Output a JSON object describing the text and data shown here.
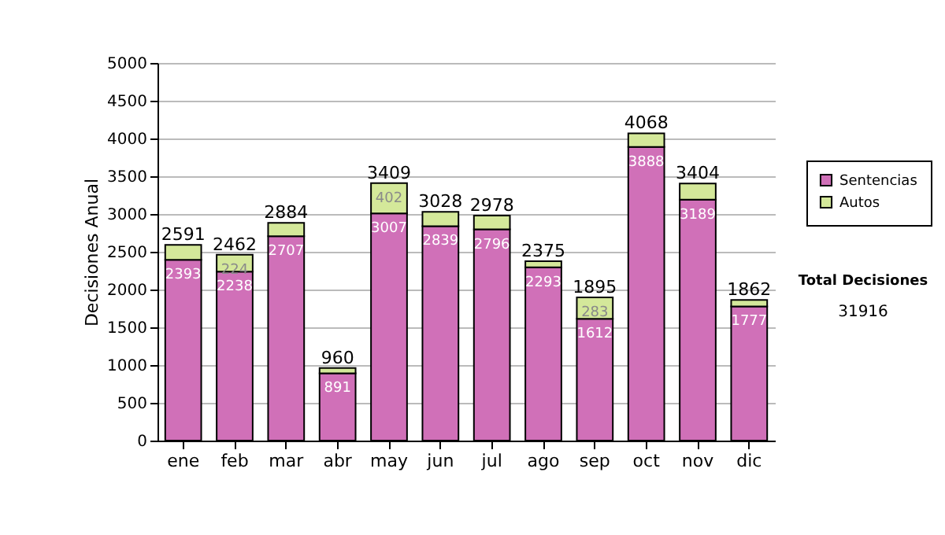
{
  "chart_data": {
    "type": "bar",
    "stacked": true,
    "ylabel": "Decisiones Anual",
    "categories": [
      "ene",
      "feb",
      "mar",
      "abr",
      "may",
      "jun",
      "jul",
      "ago",
      "sep",
      "oct",
      "nov",
      "dic"
    ],
    "series": [
      {
        "name": "Sentencias",
        "color": "#d070b8",
        "values": [
          2393,
          2238,
          2707,
          891,
          3007,
          2839,
          2796,
          2293,
          1612,
          3888,
          3189,
          1777
        ],
        "value_labels": [
          "2393",
          "2238",
          "2707",
          "891",
          "3007",
          "2839",
          "2796",
          "2293",
          "1612",
          "3888",
          "3189",
          "1777"
        ]
      },
      {
        "name": "Autos",
        "color": "#d4e89a",
        "values": [
          198,
          224,
          177,
          69,
          402,
          189,
          182,
          82,
          283,
          180,
          215,
          85
        ],
        "value_labels": [
          null,
          "224",
          null,
          null,
          "402",
          null,
          null,
          null,
          "283",
          null,
          null,
          null
        ]
      }
    ],
    "totals": [
      "2591",
      "2462",
      "2884",
      "960",
      "3409",
      "3028",
      "2978",
      "2375",
      "1895",
      "4068",
      "3404",
      "1862"
    ],
    "ylim": [
      0,
      5000
    ],
    "yticks": [
      0,
      500,
      1000,
      1500,
      2000,
      2500,
      3000,
      3500,
      4000,
      4500,
      5000
    ],
    "grid": "y",
    "legend": "right",
    "annotations": [
      "Total Decisiones",
      "31916"
    ]
  }
}
